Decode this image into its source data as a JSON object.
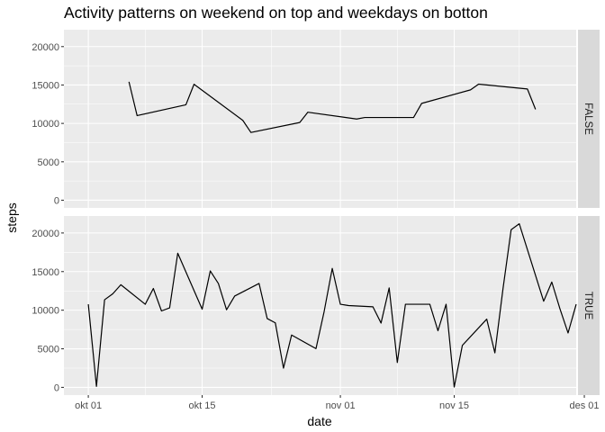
{
  "chart_data": {
    "type": "line",
    "title": "Activity patterns on weekend on top and weekdays on botton",
    "xlabel": "date",
    "ylabel": "steps",
    "xlim": [
      "2012-09-28",
      "2012-11-30"
    ],
    "ylim": [
      -1000,
      22200
    ],
    "x_ticks": [
      {
        "date": "2012-10-01",
        "label": "okt 01"
      },
      {
        "date": "2012-10-15",
        "label": "okt 15"
      },
      {
        "date": "2012-11-01",
        "label": "nov 01"
      },
      {
        "date": "2012-11-15",
        "label": "nov 15"
      },
      {
        "date": "2012-12-01",
        "label": "des 01"
      }
    ],
    "y_ticks": [
      0,
      5000,
      10000,
      15000,
      20000
    ],
    "grid": true,
    "facets": [
      {
        "label": "FALSE",
        "points": [
          [
            "2012-10-06",
            15420
          ],
          [
            "2012-10-07",
            11015
          ],
          [
            "2012-10-13",
            12426
          ],
          [
            "2012-10-14",
            15098
          ],
          [
            "2012-10-20",
            10395
          ],
          [
            "2012-10-21",
            8821
          ],
          [
            "2012-10-27",
            10119
          ],
          [
            "2012-10-28",
            11458
          ],
          [
            "2012-11-03",
            10571
          ],
          [
            "2012-11-04",
            10766
          ],
          [
            "2012-11-10",
            10766
          ],
          [
            "2012-11-11",
            12608
          ],
          [
            "2012-11-17",
            14366
          ],
          [
            "2012-11-18",
            15110
          ],
          [
            "2012-11-24",
            14478
          ],
          [
            "2012-11-25",
            11834
          ]
        ]
      },
      {
        "label": "TRUE",
        "points": [
          [
            "2012-10-01",
            10766
          ],
          [
            "2012-10-02",
            126
          ],
          [
            "2012-10-03",
            11352
          ],
          [
            "2012-10-04",
            12116
          ],
          [
            "2012-10-05",
            13294
          ],
          [
            "2012-10-08",
            10766
          ],
          [
            "2012-10-09",
            12811
          ],
          [
            "2012-10-10",
            9900
          ],
          [
            "2012-10-11",
            10304
          ],
          [
            "2012-10-12",
            17382
          ],
          [
            "2012-10-15",
            10139
          ],
          [
            "2012-10-16",
            15084
          ],
          [
            "2012-10-17",
            13452
          ],
          [
            "2012-10-18",
            10056
          ],
          [
            "2012-10-19",
            11829
          ],
          [
            "2012-10-22",
            13460
          ],
          [
            "2012-10-23",
            8918
          ],
          [
            "2012-10-24",
            8355
          ],
          [
            "2012-10-25",
            2492
          ],
          [
            "2012-10-26",
            6778
          ],
          [
            "2012-10-29",
            5018
          ],
          [
            "2012-10-30",
            9819
          ],
          [
            "2012-10-31",
            15414
          ],
          [
            "2012-11-01",
            10766
          ],
          [
            "2012-11-02",
            10600
          ],
          [
            "2012-11-05",
            10439
          ],
          [
            "2012-11-06",
            8334
          ],
          [
            "2012-11-07",
            12883
          ],
          [
            "2012-11-08",
            3219
          ],
          [
            "2012-11-09",
            10766
          ],
          [
            "2012-11-12",
            10765
          ],
          [
            "2012-11-13",
            7336
          ],
          [
            "2012-11-14",
            10766
          ],
          [
            "2012-11-15",
            41
          ],
          [
            "2012-11-16",
            5441
          ],
          [
            "2012-11-19",
            8841
          ],
          [
            "2012-11-20",
            4472
          ],
          [
            "2012-11-21",
            12787
          ],
          [
            "2012-11-22",
            20427
          ],
          [
            "2012-11-23",
            21194
          ],
          [
            "2012-11-26",
            11162
          ],
          [
            "2012-11-27",
            13646
          ],
          [
            "2012-11-28",
            10183
          ],
          [
            "2012-11-29",
            7047
          ],
          [
            "2012-11-30",
            10766
          ]
        ]
      }
    ]
  }
}
